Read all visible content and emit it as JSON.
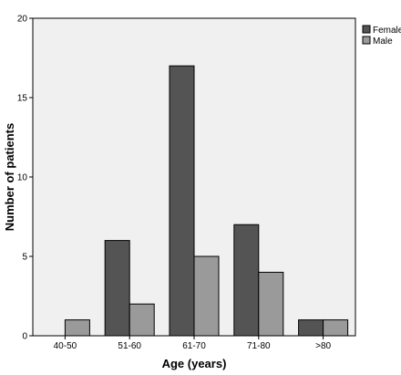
{
  "chart_data": {
    "type": "bar",
    "categories": [
      "40-50",
      "51-60",
      "61-70",
      "71-80",
      ">80"
    ],
    "series": [
      {
        "name": "Female",
        "values": [
          0,
          6,
          17,
          7,
          1
        ],
        "color": "#545454"
      },
      {
        "name": "Male",
        "values": [
          1,
          2,
          5,
          4,
          1
        ],
        "color": "#9a9a9a"
      }
    ],
    "title": "",
    "xlabel": "Age (years)",
    "ylabel": "Number of patients",
    "ylim": [
      0,
      20
    ],
    "yticks": [
      0,
      5,
      10,
      15,
      20
    ],
    "grid": false,
    "legend_position": "top-right",
    "plot_background": "#f0f0f0"
  }
}
